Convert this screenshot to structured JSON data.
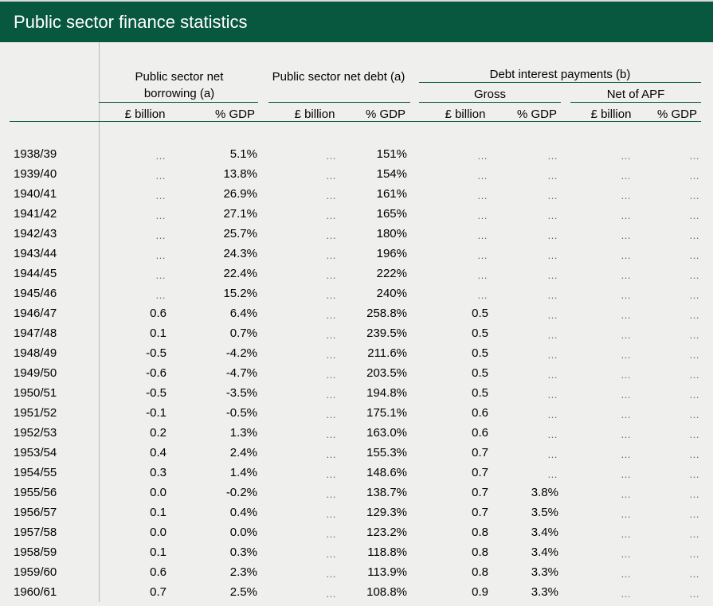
{
  "title": "Public sector finance statistics",
  "headers": {
    "borrowing": "Public sector net borrowing (a)",
    "debt": "Public sector net debt (a)",
    "interest": "Debt interest payments (b)",
    "gross": "Gross",
    "net_apf": "Net of APF",
    "sub": [
      "£ billion",
      "% GDP",
      "£ billion",
      "% GDP",
      "£ billion",
      "% GDP",
      "£ billion",
      "% GDP"
    ]
  },
  "na_symbol": "…",
  "rows": [
    [
      "1938/39",
      "…",
      "5.1%",
      "…",
      "151%",
      "…",
      "…",
      "…",
      "…"
    ],
    [
      "1939/40",
      "…",
      "13.8%",
      "…",
      "154%",
      "…",
      "…",
      "…",
      "…"
    ],
    [
      "1940/41",
      "…",
      "26.9%",
      "…",
      "161%",
      "…",
      "…",
      "…",
      "…"
    ],
    [
      "1941/42",
      "…",
      "27.1%",
      "…",
      "165%",
      "…",
      "…",
      "…",
      "…"
    ],
    [
      "1942/43",
      "…",
      "25.7%",
      "…",
      "180%",
      "…",
      "…",
      "…",
      "…"
    ],
    [
      "1943/44",
      "…",
      "24.3%",
      "…",
      "196%",
      "…",
      "…",
      "…",
      "…"
    ],
    [
      "1944/45",
      "…",
      "22.4%",
      "…",
      "222%",
      "…",
      "…",
      "…",
      "…"
    ],
    [
      "1945/46",
      "…",
      "15.2%",
      "…",
      "240%",
      "…",
      "…",
      "…",
      "…"
    ],
    [
      "1946/47",
      "0.6",
      "6.4%",
      "…",
      "258.8%",
      "0.5",
      "…",
      "…",
      "…"
    ],
    [
      "1947/48",
      "0.1",
      "0.7%",
      "…",
      "239.5%",
      "0.5",
      "…",
      "…",
      "…"
    ],
    [
      "1948/49",
      "-0.5",
      "-4.2%",
      "…",
      "211.6%",
      "0.5",
      "…",
      "…",
      "…"
    ],
    [
      "1949/50",
      "-0.6",
      "-4.7%",
      "…",
      "203.5%",
      "0.5",
      "…",
      "…",
      "…"
    ],
    [
      "1950/51",
      "-0.5",
      "-3.5%",
      "…",
      "194.8%",
      "0.5",
      "…",
      "…",
      "…"
    ],
    [
      "1951/52",
      "-0.1",
      "-0.5%",
      "…",
      "175.1%",
      "0.6",
      "…",
      "…",
      "…"
    ],
    [
      "1952/53",
      "0.2",
      "1.3%",
      "…",
      "163.0%",
      "0.6",
      "…",
      "…",
      "…"
    ],
    [
      "1953/54",
      "0.4",
      "2.4%",
      "…",
      "155.3%",
      "0.7",
      "…",
      "…",
      "…"
    ],
    [
      "1954/55",
      "0.3",
      "1.4%",
      "…",
      "148.6%",
      "0.7",
      "…",
      "…",
      "…"
    ],
    [
      "1955/56",
      "0.0",
      "-0.2%",
      "…",
      "138.7%",
      "0.7",
      "3.8%",
      "…",
      "…"
    ],
    [
      "1956/57",
      "0.1",
      "0.4%",
      "…",
      "129.3%",
      "0.7",
      "3.5%",
      "…",
      "…"
    ],
    [
      "1957/58",
      "0.0",
      "0.0%",
      "…",
      "123.2%",
      "0.8",
      "3.4%",
      "…",
      "…"
    ],
    [
      "1958/59",
      "0.1",
      "0.3%",
      "…",
      "118.8%",
      "0.8",
      "3.4%",
      "…",
      "…"
    ],
    [
      "1959/60",
      "0.6",
      "2.3%",
      "…",
      "113.9%",
      "0.8",
      "3.3%",
      "…",
      "…"
    ],
    [
      "1960/61",
      "0.7",
      "2.5%",
      "…",
      "108.8%",
      "0.9",
      "3.3%",
      "…",
      "…"
    ]
  ]
}
